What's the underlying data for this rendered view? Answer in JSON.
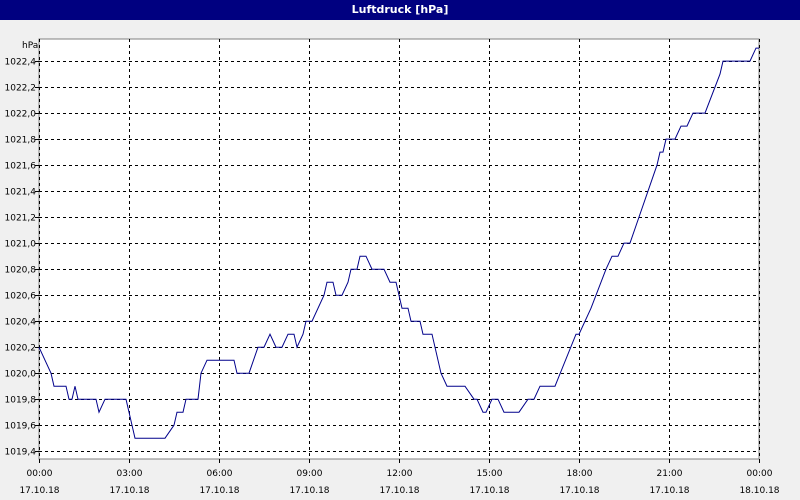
{
  "window": {
    "title": "Luftdruck [hPa]"
  },
  "chart_data": {
    "type": "line",
    "title": "Luftdruck [hPa]",
    "ylabel": "hPa",
    "xlabel": "",
    "ylim": [
      1019.4,
      1022.5
    ],
    "xlim": [
      0,
      24
    ],
    "grid": true,
    "y_ticks": [
      {
        "value": 1019.4,
        "label": "1019,4"
      },
      {
        "value": 1019.6,
        "label": "1019,6"
      },
      {
        "value": 1019.8,
        "label": "1019,8"
      },
      {
        "value": 1020.0,
        "label": "1020,0"
      },
      {
        "value": 1020.2,
        "label": "1020,2"
      },
      {
        "value": 1020.4,
        "label": "1020,4"
      },
      {
        "value": 1020.6,
        "label": "1020,6"
      },
      {
        "value": 1020.8,
        "label": "1020,8"
      },
      {
        "value": 1021.0,
        "label": "1021,0"
      },
      {
        "value": 1021.2,
        "label": "1021,2"
      },
      {
        "value": 1021.4,
        "label": "1021,4"
      },
      {
        "value": 1021.6,
        "label": "1021,6"
      },
      {
        "value": 1021.8,
        "label": "1021,8"
      },
      {
        "value": 1022.0,
        "label": "1022,0"
      },
      {
        "value": 1022.2,
        "label": "1022,2"
      },
      {
        "value": 1022.4,
        "label": "1022,4"
      }
    ],
    "x_ticks": [
      {
        "value": 0,
        "time": "00:00",
        "date": "17.10.18"
      },
      {
        "value": 3,
        "time": "03:00",
        "date": "17.10.18"
      },
      {
        "value": 6,
        "time": "06:00",
        "date": "17.10.18"
      },
      {
        "value": 9,
        "time": "09:00",
        "date": "17.10.18"
      },
      {
        "value": 12,
        "time": "12:00",
        "date": "17.10.18"
      },
      {
        "value": 15,
        "time": "15:00",
        "date": "17.10.18"
      },
      {
        "value": 18,
        "time": "18:00",
        "date": "17.10.18"
      },
      {
        "value": 21,
        "time": "21:00",
        "date": "17.10.18"
      },
      {
        "value": 24,
        "time": "00:00",
        "date": "18.10.18"
      }
    ],
    "series": [
      {
        "color": "#00008b",
        "points": [
          [
            0.0,
            1020.2
          ],
          [
            0.4,
            1020.0
          ],
          [
            0.5,
            1019.9
          ],
          [
            0.9,
            1019.9
          ],
          [
            1.0,
            1019.8
          ],
          [
            1.1,
            1019.8
          ],
          [
            1.2,
            1019.9
          ],
          [
            1.3,
            1019.8
          ],
          [
            1.9,
            1019.8
          ],
          [
            2.0,
            1019.7
          ],
          [
            2.2,
            1019.8
          ],
          [
            2.9,
            1019.8
          ],
          [
            3.1,
            1019.6
          ],
          [
            3.2,
            1019.5
          ],
          [
            4.2,
            1019.5
          ],
          [
            4.5,
            1019.6
          ],
          [
            4.6,
            1019.7
          ],
          [
            4.8,
            1019.7
          ],
          [
            4.9,
            1019.8
          ],
          [
            5.3,
            1019.8
          ],
          [
            5.4,
            1020.0
          ],
          [
            5.6,
            1020.1
          ],
          [
            6.5,
            1020.1
          ],
          [
            6.6,
            1020.0
          ],
          [
            7.0,
            1020.0
          ],
          [
            7.3,
            1020.2
          ],
          [
            7.5,
            1020.2
          ],
          [
            7.7,
            1020.3
          ],
          [
            7.9,
            1020.2
          ],
          [
            8.1,
            1020.2
          ],
          [
            8.3,
            1020.3
          ],
          [
            8.5,
            1020.3
          ],
          [
            8.6,
            1020.2
          ],
          [
            8.8,
            1020.3
          ],
          [
            8.9,
            1020.4
          ],
          [
            9.1,
            1020.4
          ],
          [
            9.5,
            1020.6
          ],
          [
            9.6,
            1020.7
          ],
          [
            9.8,
            1020.7
          ],
          [
            9.9,
            1020.6
          ],
          [
            10.1,
            1020.6
          ],
          [
            10.3,
            1020.7
          ],
          [
            10.4,
            1020.8
          ],
          [
            10.6,
            1020.8
          ],
          [
            10.7,
            1020.9
          ],
          [
            10.9,
            1020.9
          ],
          [
            11.1,
            1020.8
          ],
          [
            11.5,
            1020.8
          ],
          [
            11.7,
            1020.7
          ],
          [
            11.9,
            1020.7
          ],
          [
            12.1,
            1020.5
          ],
          [
            12.3,
            1020.5
          ],
          [
            12.4,
            1020.4
          ],
          [
            12.7,
            1020.4
          ],
          [
            12.8,
            1020.3
          ],
          [
            13.1,
            1020.3
          ],
          [
            13.4,
            1020.0
          ],
          [
            13.6,
            1019.9
          ],
          [
            14.2,
            1019.9
          ],
          [
            14.5,
            1019.8
          ],
          [
            14.6,
            1019.8
          ],
          [
            14.8,
            1019.7
          ],
          [
            14.9,
            1019.7
          ],
          [
            15.1,
            1019.8
          ],
          [
            15.3,
            1019.8
          ],
          [
            15.5,
            1019.7
          ],
          [
            16.0,
            1019.7
          ],
          [
            16.3,
            1019.8
          ],
          [
            16.5,
            1019.8
          ],
          [
            16.7,
            1019.9
          ],
          [
            17.2,
            1019.9
          ],
          [
            17.9,
            1020.3
          ],
          [
            18.0,
            1020.3
          ],
          [
            18.4,
            1020.5
          ],
          [
            18.9,
            1020.8
          ],
          [
            19.1,
            1020.9
          ],
          [
            19.3,
            1020.9
          ],
          [
            19.5,
            1021.0
          ],
          [
            19.7,
            1021.0
          ],
          [
            20.6,
            1021.6
          ],
          [
            20.7,
            1021.7
          ],
          [
            20.8,
            1021.7
          ],
          [
            20.9,
            1021.8
          ],
          [
            21.2,
            1021.8
          ],
          [
            21.4,
            1021.9
          ],
          [
            21.6,
            1021.9
          ],
          [
            21.8,
            1022.0
          ],
          [
            22.2,
            1022.0
          ],
          [
            22.7,
            1022.3
          ],
          [
            22.8,
            1022.4
          ],
          [
            23.7,
            1022.4
          ],
          [
            23.9,
            1022.5
          ],
          [
            24.0,
            1022.5
          ]
        ]
      }
    ]
  }
}
